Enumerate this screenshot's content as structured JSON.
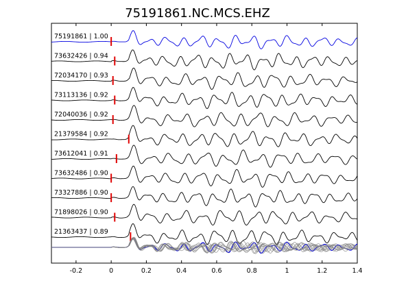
{
  "chart_data": {
    "type": "line",
    "title": "75191861.NC.MCS.EHZ",
    "xlabel": "",
    "ylabel": "",
    "xlim": [
      -0.34,
      1.4
    ],
    "x_ticks": [
      -0.2,
      0,
      0.2,
      0.4,
      0.6,
      0.8,
      1,
      1.2,
      1.4
    ],
    "x_tick_labels": [
      "-0.2",
      "0",
      "0.2",
      "0.4",
      "0.6",
      "0.8",
      "1",
      "1.2",
      "1.4"
    ],
    "grid": false,
    "legend": "none",
    "pick_marker_color": "#e00000",
    "reference_color": "#0000e0",
    "trace_color": "#000000",
    "stack_color": "#808080",
    "traces": [
      {
        "label": "75191861 | 1.00",
        "pick": 0.0
      },
      {
        "label": "73632426 | 0.94",
        "pick": 0.02
      },
      {
        "label": "72034170 | 0.93",
        "pick": 0.01
      },
      {
        "label": "73113136 | 0.92",
        "pick": 0.02
      },
      {
        "label": "72040036 | 0.92",
        "pick": 0.01
      },
      {
        "label": "21379584 | 0.92",
        "pick": 0.1
      },
      {
        "label": "73612041 | 0.91",
        "pick": 0.03
      },
      {
        "label": "73632486 | 0.90",
        "pick": 0.0
      },
      {
        "label": "73327886 | 0.90",
        "pick": 0.0
      },
      {
        "label": "71898026 | 0.90",
        "pick": 0.02
      },
      {
        "label": "21363437 | 0.89",
        "pick": 0.11
      }
    ]
  }
}
